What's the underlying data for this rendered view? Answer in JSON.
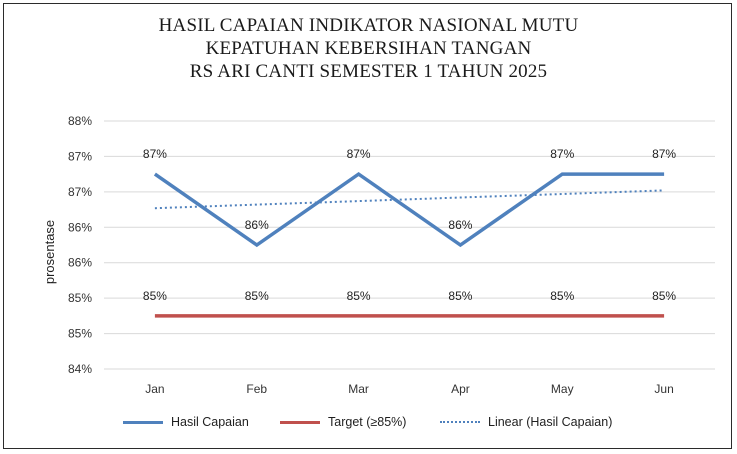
{
  "title_lines": [
    "HASIL CAPAIAN INDIKATOR NASIONAL MUTU",
    "KEPATUHAN KEBERSIHAN TANGAN",
    "RS ARI CANTI SEMESTER 1 TAHUN 2025"
  ],
  "chart_data": {
    "type": "line",
    "title": "HASIL CAPAIAN INDIKATOR NASIONAL MUTU KEPATUHAN KEBERSIHAN TANGAN RS ARI CANTI SEMESTER 1 TAHUN 2025",
    "xlabel": "",
    "ylabel": "prosentase",
    "categories": [
      "Jan",
      "Feb",
      "Mar",
      "Apr",
      "May",
      "Jun"
    ],
    "y_tick_labels": [
      "84%",
      "85%",
      "85%",
      "86%",
      "86%",
      "87%",
      "87%",
      "88%"
    ],
    "ylim": [
      0.8425,
      0.8775
    ],
    "grid": true,
    "legend_position": "bottom",
    "series": [
      {
        "name": "Hasil Capaian",
        "values": [
          0.87,
          0.86,
          0.87,
          0.86,
          0.87,
          0.87
        ],
        "data_labels": [
          "87%",
          "86%",
          "87%",
          "86%",
          "87%",
          "87%"
        ],
        "color": "#4f81bd",
        "style": "solid"
      },
      {
        "name": "Target (≥85%)",
        "values": [
          0.85,
          0.85,
          0.85,
          0.85,
          0.85,
          0.85
        ],
        "data_labels": [
          "85%",
          "85%",
          "85%",
          "85%",
          "85%",
          "85%"
        ],
        "color": "#c0504d",
        "style": "solid"
      },
      {
        "name": "Linear (Hasil Capaian)",
        "values": [
          0.8652,
          0.8657,
          0.8662,
          0.8667,
          0.8672,
          0.8677
        ],
        "color": "#4f81bd",
        "style": "dotted"
      }
    ]
  }
}
